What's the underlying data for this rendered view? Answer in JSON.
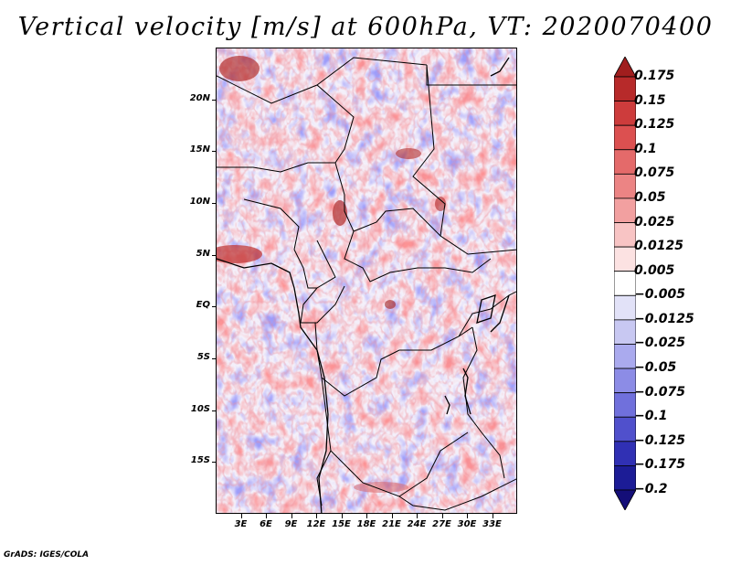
{
  "title": "Vertical velocity [m/s] at 600hPa, VT: 2020070400",
  "footer": "GrADS: IGES/COLA",
  "map": {
    "lon_range": [
      0,
      36
    ],
    "lat_range": [
      -20,
      25
    ],
    "lat_ticks": [
      "20N",
      "15N",
      "10N",
      "5N",
      "EQ",
      "5S",
      "10S",
      "15S"
    ],
    "lon_ticks": [
      "3E",
      "6E",
      "9E",
      "12E",
      "15E",
      "18E",
      "21E",
      "24E",
      "27E",
      "30E",
      "33E"
    ]
  },
  "colorbar": {
    "labels": [
      "0.175",
      "0.15",
      "0.125",
      "0.1",
      "0.075",
      "0.05",
      "0.025",
      "0.0125",
      "0.005",
      "−0.005",
      "−0.0125",
      "−0.025",
      "−0.05",
      "−0.075",
      "−0.1",
      "−0.125",
      "−0.175",
      "−0.2"
    ],
    "colors": [
      "#a01e1e",
      "#b72a2a",
      "#cd3c3c",
      "#dc5050",
      "#e46a6a",
      "#ec8484",
      "#f2a0a0",
      "#f8c4c4",
      "#fce2e2",
      "#ffffff",
      "#e2e2f8",
      "#c8c8f2",
      "#aaaaee",
      "#8c8ce6",
      "#7070dc",
      "#5050cc",
      "#3030b4",
      "#1c1c96",
      "#140e78"
    ]
  }
}
